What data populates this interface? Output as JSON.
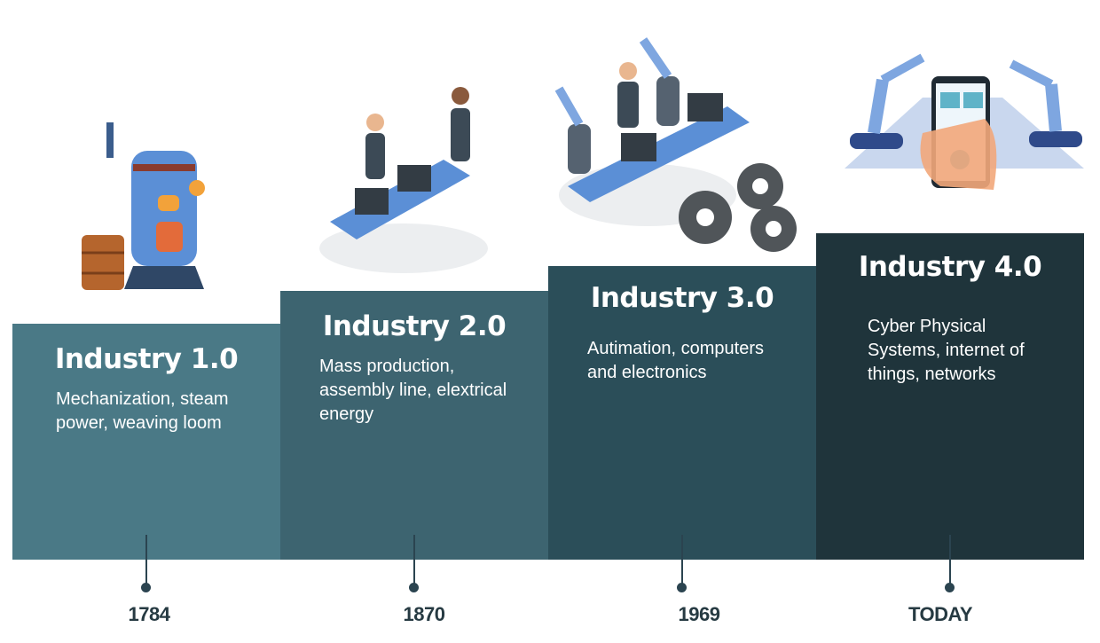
{
  "stages": [
    {
      "title": "Industry 1.0",
      "description": "Mechanization, steam power, weaving loom",
      "year": "1784"
    },
    {
      "title": "Industry 2.0",
      "description": "Mass production, assembly line, elextrical energy",
      "year": "1870"
    },
    {
      "title": "Industry 3.0",
      "description": "Autimation, computers and electronics",
      "year": "1969"
    },
    {
      "title": "Industry 4.0",
      "description": "Cyber Physical Systems, internet of things, networks",
      "year": "TODAY"
    }
  ]
}
